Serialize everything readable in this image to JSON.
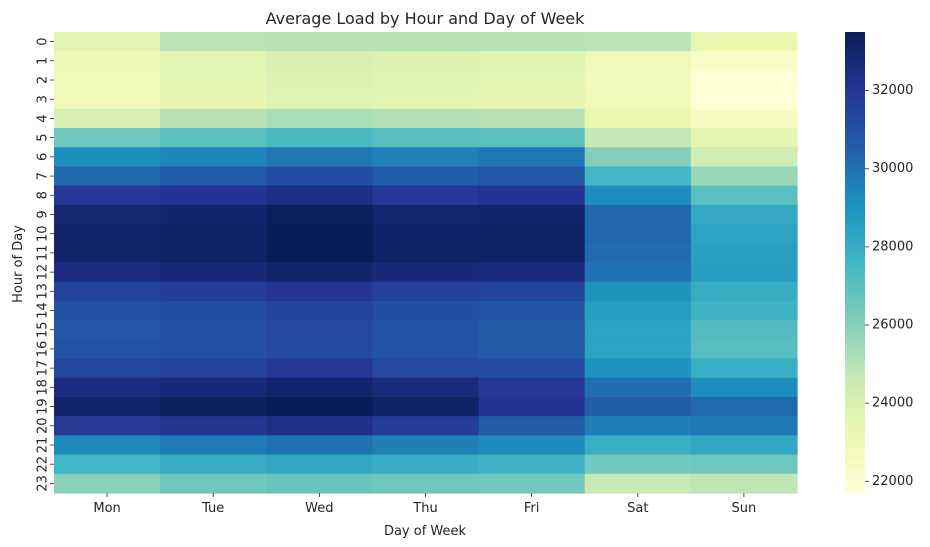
{
  "chart_data": {
    "type": "heatmap",
    "title": "Average Load by Hour and Day of Week",
    "xlabel": "Day of Week",
    "ylabel": "Hour of Day",
    "x_categories": [
      "Mon",
      "Tue",
      "Wed",
      "Thu",
      "Fri",
      "Sat",
      "Sun"
    ],
    "y_categories": [
      "0",
      "1",
      "2",
      "3",
      "4",
      "5",
      "6",
      "7",
      "8",
      "9",
      "10",
      "11",
      "12",
      "13",
      "14",
      "15",
      "16",
      "17",
      "18",
      "19",
      "20",
      "21",
      "22",
      "23"
    ],
    "colorscale": "YlGnBu",
    "colorbar": {
      "min": 21700,
      "max": 33500,
      "ticks": [
        22000,
        24000,
        26000,
        28000,
        30000,
        32000
      ],
      "tick_labels": [
        "22000",
        "24000",
        "26000",
        "28000",
        "30000",
        "32000"
      ]
    },
    "values": [
      [
        23600,
        24900,
        25000,
        25000,
        25000,
        24900,
        23300
      ],
      [
        23000,
        23600,
        24000,
        23800,
        23700,
        22900,
        22300
      ],
      [
        22900,
        23500,
        23800,
        23700,
        23500,
        22800,
        21900
      ],
      [
        22900,
        23400,
        23700,
        23600,
        23400,
        22900,
        21800
      ],
      [
        24000,
        25000,
        25300,
        25100,
        25000,
        23300,
        22500
      ],
      [
        26500,
        27000,
        27400,
        27100,
        27000,
        24700,
        23500
      ],
      [
        29100,
        29400,
        29800,
        29500,
        29800,
        26000,
        24300
      ],
      [
        30300,
        30700,
        31100,
        30600,
        30800,
        27600,
        25600
      ],
      [
        31900,
        32100,
        32400,
        31900,
        32100,
        29200,
        27000
      ],
      [
        32800,
        33000,
        33300,
        32900,
        33000,
        30300,
        28100
      ],
      [
        33000,
        33100,
        33500,
        33100,
        33100,
        30300,
        28400
      ],
      [
        33000,
        33100,
        33500,
        33100,
        33100,
        30200,
        28500
      ],
      [
        32500,
        32700,
        33000,
        32700,
        32600,
        30000,
        28600
      ],
      [
        31500,
        31700,
        32000,
        31600,
        31500,
        29000,
        28000
      ],
      [
        31000,
        31200,
        31500,
        31100,
        30900,
        28600,
        27700
      ],
      [
        30800,
        31000,
        31300,
        30900,
        30700,
        28400,
        27200
      ],
      [
        30900,
        31000,
        31300,
        30900,
        30700,
        28400,
        27100
      ],
      [
        31400,
        31500,
        31900,
        31300,
        31100,
        29000,
        27900
      ],
      [
        32500,
        32700,
        33000,
        32600,
        31900,
        30100,
        29200
      ],
      [
        33000,
        33300,
        33500,
        33200,
        32100,
        30600,
        30200
      ],
      [
        31800,
        32000,
        32300,
        31700,
        30600,
        29600,
        29800
      ],
      [
        29300,
        29700,
        30000,
        29600,
        29300,
        27900,
        28200
      ],
      [
        27600,
        28000,
        28200,
        28000,
        27700,
        26400,
        26500
      ],
      [
        25900,
        26500,
        26700,
        26500,
        26400,
        24600,
        24800
      ]
    ]
  }
}
